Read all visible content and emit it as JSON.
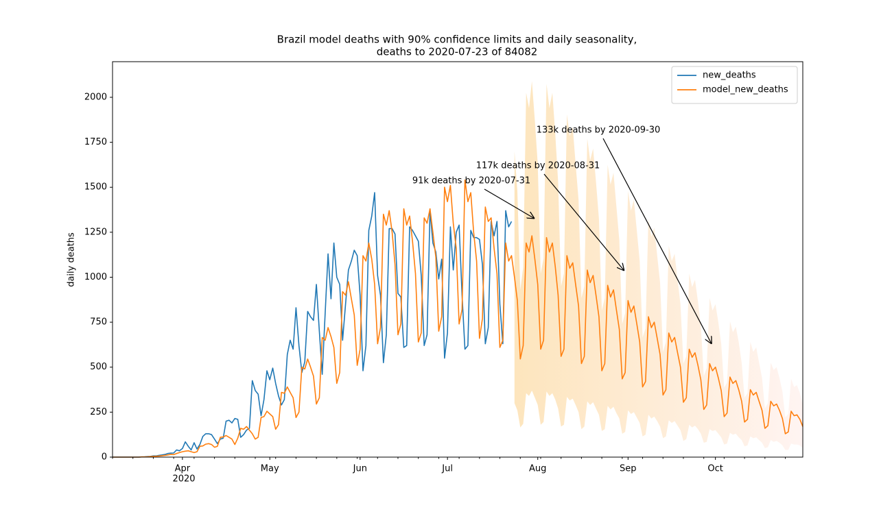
{
  "chart_data": {
    "type": "line",
    "title": [
      "Brazil model deaths with 90% confidence limits and daily seasonality,",
      "deaths to 2020-07-23 of 84082"
    ],
    "ylabel": "daily deaths",
    "x_year_label": "2020",
    "legend": "upper right",
    "xlim": [
      0,
      237
    ],
    "ylim": [
      0,
      2198
    ],
    "yticks": [
      0,
      250,
      500,
      750,
      1000,
      1250,
      1500,
      1750,
      2000
    ],
    "xticks": [
      {
        "value": 24,
        "label": "Apr"
      },
      {
        "value": 54,
        "label": "May"
      },
      {
        "value": 85,
        "label": "Jun"
      },
      {
        "value": 115,
        "label": "Jul"
      },
      {
        "value": 146,
        "label": "Aug"
      },
      {
        "value": 177,
        "label": "Sep"
      },
      {
        "value": 207,
        "label": "Oct"
      }
    ],
    "xminorticks": [
      0,
      7,
      14,
      21,
      28,
      35,
      42,
      49,
      56,
      63,
      70,
      77,
      84,
      91,
      98,
      105,
      112,
      119,
      126,
      133,
      140,
      147,
      154,
      161,
      168,
      175,
      182,
      189,
      196,
      203,
      210,
      217,
      224,
      231
    ],
    "x": [
      0,
      1,
      2,
      3,
      4,
      5,
      6,
      7,
      8,
      9,
      10,
      11,
      12,
      13,
      14,
      15,
      16,
      17,
      18,
      19,
      20,
      21,
      22,
      23,
      24,
      25,
      26,
      27,
      28,
      29,
      30,
      31,
      32,
      33,
      34,
      35,
      36,
      37,
      38,
      39,
      40,
      41,
      42,
      43,
      44,
      45,
      46,
      47,
      48,
      49,
      50,
      51,
      52,
      53,
      54,
      55,
      56,
      57,
      58,
      59,
      60,
      61,
      62,
      63,
      64,
      65,
      66,
      67,
      68,
      69,
      70,
      71,
      72,
      73,
      74,
      75,
      76,
      77,
      78,
      79,
      80,
      81,
      82,
      83,
      84,
      85,
      86,
      87,
      88,
      89,
      90,
      91,
      92,
      93,
      94,
      95,
      96,
      97,
      98,
      99,
      100,
      101,
      102,
      103,
      104,
      105,
      106,
      107,
      108,
      109,
      110,
      111,
      112,
      113,
      114,
      115,
      116,
      117,
      118,
      119,
      120,
      121,
      122,
      123,
      124,
      125,
      126,
      127,
      128,
      129,
      130,
      131,
      132,
      133,
      134,
      135,
      136,
      137,
      138,
      139,
      140,
      141,
      142,
      143,
      144,
      145,
      146,
      147,
      148,
      149,
      150,
      151,
      152,
      153,
      154,
      155,
      156,
      157,
      158,
      159,
      160,
      161,
      162,
      163,
      164,
      165,
      166,
      167,
      168,
      169,
      170,
      171,
      172,
      173,
      174,
      175,
      176,
      177,
      178,
      179,
      180,
      181,
      182,
      183,
      184,
      185,
      186,
      187,
      188,
      189,
      190,
      191,
      192,
      193,
      194,
      195,
      196,
      197,
      198,
      199,
      200,
      201,
      202,
      203,
      204,
      205,
      206,
      207,
      208,
      209,
      210,
      211,
      212,
      213,
      214,
      215,
      216,
      217,
      218,
      219,
      220,
      221,
      222,
      223,
      224,
      225,
      226,
      227,
      228,
      229,
      230,
      231,
      232,
      233,
      234,
      235,
      236,
      237
    ],
    "band": {
      "color": "#fde5bd",
      "fade_color": "#fff4f2",
      "upper": [
        null,
        null,
        null,
        null,
        null,
        null,
        null,
        null,
        null,
        null,
        null,
        null,
        null,
        null,
        null,
        null,
        null,
        null,
        null,
        null,
        null,
        null,
        null,
        null,
        null,
        null,
        null,
        null,
        null,
        null,
        null,
        null,
        null,
        null,
        null,
        null,
        null,
        null,
        null,
        null,
        null,
        null,
        null,
        null,
        null,
        null,
        null,
        null,
        null,
        null,
        null,
        null,
        null,
        null,
        null,
        null,
        null,
        null,
        null,
        null,
        null,
        null,
        null,
        null,
        null,
        null,
        null,
        null,
        null,
        null,
        null,
        null,
        null,
        null,
        null,
        null,
        null,
        null,
        null,
        null,
        null,
        null,
        null,
        null,
        null,
        null,
        null,
        null,
        null,
        null,
        null,
        null,
        null,
        null,
        null,
        null,
        null,
        null,
        null,
        null,
        null,
        null,
        null,
        null,
        null,
        null,
        null,
        null,
        null,
        null,
        null,
        null,
        null,
        null,
        null,
        null,
        null,
        null,
        null,
        null,
        null,
        null,
        null,
        null,
        null,
        null,
        null,
        null,
        null,
        null,
        null,
        null,
        null,
        null,
        null,
        null,
        null,
        null,
        1700,
        1480,
        930,
        1055,
        2025,
        1940,
        2090,
        1870,
        1630,
        1020,
        1105,
        2075,
        1940,
        2025,
        1800,
        1530,
        950,
        1020,
        1905,
        1785,
        1835,
        1630,
        1430,
        885,
        950,
        1770,
        1650,
        1715,
        1530,
        1325,
        815,
        885,
        1625,
        1515,
        1580,
        1395,
        1205,
        740,
        800,
        1480,
        1370,
        1430,
        1260,
        1090,
        665,
        715,
        1325,
        1225,
        1275,
        1120,
        970,
        585,
        640,
        1175,
        1090,
        1130,
        985,
        850,
        520,
        560,
        1020,
        945,
        985,
        865,
        730,
        450,
        495,
        885,
        815,
        850,
        750,
        630,
        385,
        415,
        755,
        695,
        725,
        640,
        525,
        330,
        355,
        640,
        585,
        610,
        525,
        440,
        270,
        300,
        525,
        485,
        500,
        440,
        365,
        220,
        240,
        435,
        390,
        400,
        355,
        290
      ],
      "lower": [
        null,
        null,
        null,
        null,
        null,
        null,
        null,
        null,
        null,
        null,
        null,
        null,
        null,
        null,
        null,
        null,
        null,
        null,
        null,
        null,
        null,
        null,
        null,
        null,
        null,
        null,
        null,
        null,
        null,
        null,
        null,
        null,
        null,
        null,
        null,
        null,
        null,
        null,
        null,
        null,
        null,
        null,
        null,
        null,
        null,
        null,
        null,
        null,
        null,
        null,
        null,
        null,
        null,
        null,
        null,
        null,
        null,
        null,
        null,
        null,
        null,
        null,
        null,
        null,
        null,
        null,
        null,
        null,
        null,
        null,
        null,
        null,
        null,
        null,
        null,
        null,
        null,
        null,
        null,
        null,
        null,
        null,
        null,
        null,
        null,
        null,
        null,
        null,
        null,
        null,
        null,
        null,
        null,
        null,
        null,
        null,
        null,
        null,
        null,
        null,
        null,
        null,
        null,
        null,
        null,
        null,
        null,
        null,
        null,
        null,
        null,
        null,
        null,
        null,
        null,
        null,
        null,
        null,
        null,
        null,
        null,
        null,
        null,
        null,
        null,
        null,
        null,
        null,
        null,
        null,
        null,
        null,
        null,
        null,
        null,
        null,
        null,
        null,
        300,
        260,
        165,
        185,
        355,
        340,
        370,
        330,
        290,
        180,
        195,
        365,
        340,
        355,
        320,
        270,
        170,
        180,
        335,
        315,
        325,
        290,
        250,
        155,
        170,
        310,
        290,
        305,
        270,
        235,
        145,
        155,
        285,
        265,
        280,
        245,
        215,
        130,
        140,
        260,
        240,
        250,
        220,
        190,
        115,
        125,
        235,
        215,
        225,
        200,
        170,
        105,
        115,
        205,
        190,
        200,
        175,
        150,
        90,
        100,
        180,
        165,
        175,
        155,
        130,
        80,
        85,
        155,
        145,
        150,
        130,
        110,
        70,
        75,
        135,
        125,
        130,
        110,
        95,
        60,
        65,
        115,
        105,
        110,
        95,
        80,
        50,
        55,
        95,
        85,
        90,
        80,
        65,
        40,
        40,
        75,
        70,
        70,
        65,
        50
      ]
    },
    "series": [
      {
        "name": "new_deaths",
        "color": "#1f77b4",
        "values": [
          0,
          0,
          0,
          0,
          0,
          0,
          0,
          0,
          0,
          0,
          1,
          2,
          3,
          4,
          7,
          7,
          10,
          12,
          15,
          20,
          22,
          23,
          40,
          35,
          48,
          85,
          60,
          40,
          80,
          45,
          70,
          115,
          130,
          130,
          125,
          100,
          75,
          100,
          105,
          200,
          205,
          190,
          215,
          210,
          110,
          125,
          150,
          160,
          425,
          370,
          350,
          230,
          320,
          480,
          430,
          495,
          410,
          340,
          290,
          320,
          570,
          650,
          600,
          830,
          620,
          470,
          530,
          810,
          780,
          760,
          960,
          700,
          460,
          800,
          1130,
          880,
          1190,
          1000,
          960,
          650,
          850,
          1040,
          1090,
          1150,
          1120,
          900,
          480,
          620,
          1260,
          1340,
          1470,
          1010,
          900,
          525,
          680,
          1270,
          1270,
          1240,
          910,
          890,
          610,
          620,
          1280,
          1260,
          1230,
          1200,
          1010,
          620,
          680,
          1370,
          1190,
          1140,
          990,
          1100,
          550,
          690,
          1280,
          1040,
          1250,
          1290,
          900,
          600,
          620,
          1260,
          1220,
          1220,
          1210,
          1070,
          630,
          720,
          1310,
          1230,
          1310,
          850,
          630,
          1370,
          1280,
          1310,
          null,
          null,
          null,
          null,
          null,
          null,
          null,
          null,
          null,
          null,
          null,
          null,
          null,
          null,
          null,
          null,
          null,
          null,
          null,
          null,
          null,
          null,
          null,
          null,
          null,
          null,
          null,
          null,
          null,
          null,
          null,
          null,
          null,
          null,
          null,
          null,
          null,
          null,
          null,
          null,
          null,
          null,
          null,
          null,
          null,
          null,
          null,
          null,
          null,
          null,
          null,
          null,
          null,
          null,
          null,
          null,
          null,
          null,
          null,
          null,
          null,
          null,
          null,
          null,
          null,
          null,
          null,
          null,
          null,
          null,
          null,
          null,
          null,
          null,
          null,
          null,
          null,
          null,
          null,
          null,
          null,
          null,
          null,
          null,
          null,
          null,
          null,
          null,
          null,
          null,
          null,
          null,
          null,
          null,
          null,
          null,
          null,
          null,
          null,
          null
        ]
      },
      {
        "name": "model_new_deaths",
        "color": "#ff7f0e",
        "values": [
          0,
          0,
          0,
          0,
          0,
          0,
          0,
          0,
          0,
          0,
          1,
          1,
          2,
          3,
          4,
          5,
          6,
          8,
          10,
          12,
          15,
          14,
          20,
          25,
          30,
          33,
          35,
          30,
          25,
          30,
          60,
          62,
          72,
          75,
          70,
          55,
          60,
          110,
          112,
          120,
          110,
          100,
          70,
          105,
          160,
          155,
          170,
          150,
          130,
          100,
          110,
          220,
          225,
          255,
          240,
          225,
          155,
          180,
          360,
          355,
          390,
          360,
          330,
          220,
          250,
          500,
          490,
          545,
          500,
          450,
          295,
          330,
          665,
          650,
          720,
          670,
          610,
          410,
          470,
          920,
          900,
          975,
          880,
          790,
          510,
          600,
          1120,
          1090,
          1190,
          1100,
          960,
          630,
          720,
          1350,
          1290,
          1370,
          1250,
          1070,
          680,
          740,
          1380,
          1290,
          1340,
          1200,
          1020,
          640,
          690,
          1330,
          1300,
          1380,
          1250,
          1110,
          700,
          780,
          1500,
          1420,
          1510,
          1300,
          1160,
          740,
          820,
          1540,
          1420,
          1470,
          1250,
          1090,
          660,
          770,
          1390,
          1310,
          1330,
          1160,
          1020,
          610,
          650,
          1190,
          1090,
          1120,
          1000,
          870,
          546,
          620,
          1190,
          1140,
          1230,
          1100,
          960,
          600,
          650,
          1220,
          1140,
          1190,
          1060,
          900,
          560,
          600,
          1120,
          1050,
          1080,
          960,
          840,
          520,
          560,
          1040,
          970,
          1010,
          900,
          780,
          480,
          520,
          955,
          890,
          930,
          820,
          710,
          435,
          470,
          870,
          805,
          840,
          740,
          640,
          390,
          420,
          780,
          720,
          750,
          660,
          570,
          345,
          375,
          690,
          640,
          665,
          580,
          500,
          305,
          330,
          600,
          555,
          580,
          510,
          430,
          265,
          290,
          520,
          480,
          500,
          440,
          370,
          225,
          245,
          445,
          410,
          425,
          375,
          310,
          195,
          210,
          375,
          345,
          360,
          310,
          260,
          160,
          175,
          310,
          285,
          295,
          260,
          215,
          130,
          140,
          255,
          230,
          235,
          210,
          170
        ]
      }
    ],
    "annotations": [
      {
        "text": "91k deaths by 2020-07-31",
        "xy": [
          144.9,
          1326
        ]
      },
      {
        "text": "117k deaths by 2020-08-31",
        "xy": [
          175.7,
          1036
        ]
      },
      {
        "text": "133k deaths by 2020-09-30",
        "xy": [
          205.7,
          629
        ]
      }
    ]
  }
}
